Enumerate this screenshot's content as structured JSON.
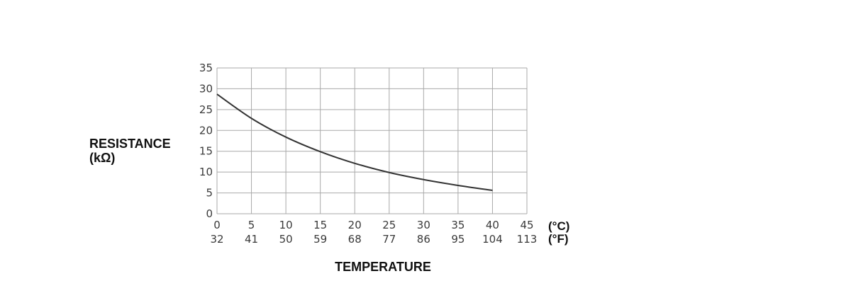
{
  "chart_data": {
    "type": "line",
    "ylabel_line1": "RESISTANCE",
    "ylabel_line2": "(kΩ)",
    "xlabel": "TEMPERATURE",
    "x_unit_c": "(°C)",
    "x_unit_f": "(°F)",
    "xlim": [
      0,
      45
    ],
    "ylim": [
      0,
      35
    ],
    "grid": true,
    "x_ticks_c": [
      "0",
      "5",
      "10",
      "15",
      "20",
      "25",
      "30",
      "35",
      "40",
      "45"
    ],
    "x_ticks_f": [
      "32",
      "41",
      "50",
      "59",
      "68",
      "77",
      "86",
      "95",
      "104",
      "113"
    ],
    "y_ticks": [
      "0",
      "5",
      "10",
      "15",
      "20",
      "25",
      "30",
      "35"
    ],
    "series": [
      {
        "x": [
          0,
          5,
          10,
          15,
          20,
          25,
          30,
          35,
          40
        ],
        "values": [
          28.7,
          22.9,
          18.4,
          14.9,
          12.1,
          9.9,
          8.2,
          6.8,
          5.6
        ]
      }
    ],
    "line_color": "#333333",
    "grid_color": "#a9a9a9"
  }
}
